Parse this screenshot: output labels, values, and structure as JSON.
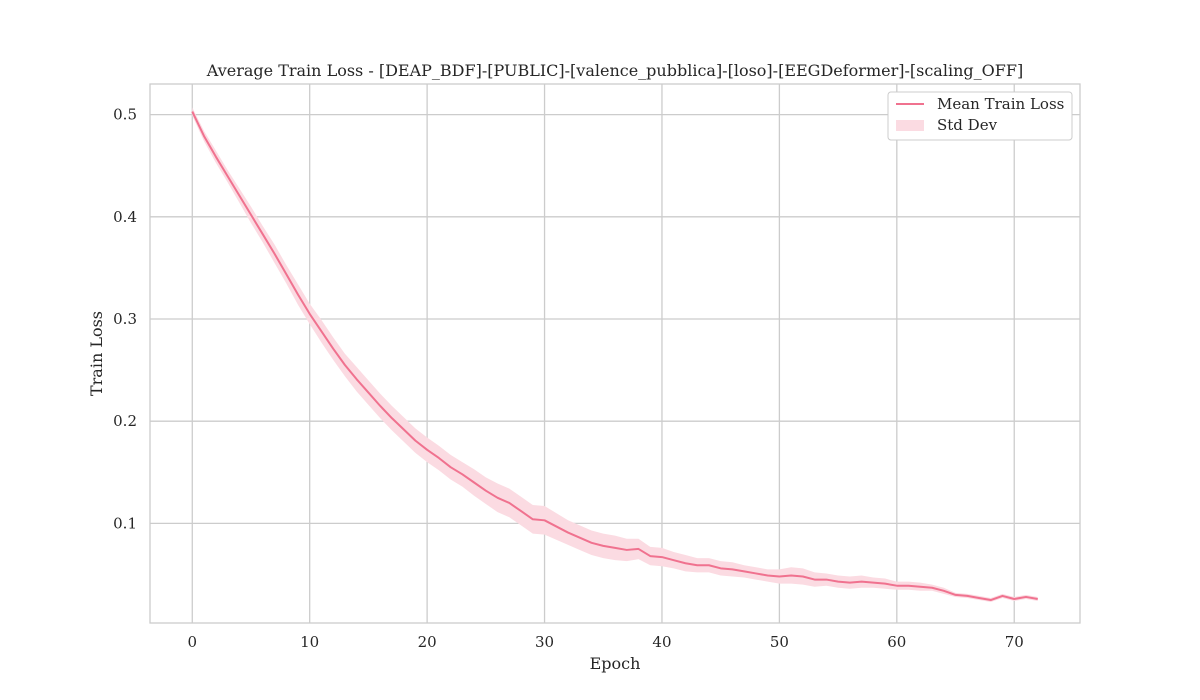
{
  "chart_data": {
    "type": "line",
    "title": "Average Train Loss - [DEAP_BDF]-[PUBLIC]-[valence_pubblica]-[loso]-[EEGDeformer]-[scaling_OFF]",
    "xlabel": "Epoch",
    "ylabel": "Train Loss",
    "xlim": [
      -3.6,
      75.6
    ],
    "ylim": [
      0.0025,
      0.53
    ],
    "xticks": [
      0,
      10,
      20,
      30,
      40,
      50,
      60,
      70
    ],
    "yticks": [
      0.1,
      0.2,
      0.3,
      0.4,
      0.5
    ],
    "xtick_labels": [
      "0",
      "10",
      "20",
      "30",
      "40",
      "50",
      "60",
      "70"
    ],
    "ytick_labels": [
      "0.1",
      "0.2",
      "0.3",
      "0.4",
      "0.5"
    ],
    "grid": true,
    "legend_position": "top-right",
    "legend": [
      "Mean Train Loss",
      "Std Dev"
    ],
    "colors": {
      "line": "#f0728f",
      "band": "#fbdbe2",
      "grid": "#cccccc",
      "frame": "#cccccc"
    },
    "series": [
      {
        "name": "Mean Train Loss",
        "x": [
          0,
          1,
          2,
          3,
          4,
          5,
          6,
          7,
          8,
          9,
          10,
          11,
          12,
          13,
          14,
          15,
          16,
          17,
          18,
          19,
          20,
          21,
          22,
          23,
          24,
          25,
          26,
          27,
          28,
          29,
          30,
          31,
          32,
          33,
          34,
          35,
          36,
          37,
          38,
          39,
          40,
          41,
          42,
          43,
          44,
          45,
          46,
          47,
          48,
          49,
          50,
          51,
          52,
          53,
          54,
          55,
          56,
          57,
          58,
          59,
          60,
          61,
          62,
          63,
          64,
          65,
          66,
          67,
          68,
          69,
          70,
          71,
          72
        ],
        "values": [
          0.503,
          0.479,
          0.459,
          0.44,
          0.421,
          0.402,
          0.383,
          0.364,
          0.344,
          0.324,
          0.305,
          0.288,
          0.271,
          0.255,
          0.241,
          0.228,
          0.215,
          0.203,
          0.192,
          0.181,
          0.172,
          0.164,
          0.155,
          0.148,
          0.14,
          0.132,
          0.125,
          0.12,
          0.112,
          0.104,
          0.103,
          0.097,
          0.091,
          0.086,
          0.081,
          0.078,
          0.076,
          0.074,
          0.075,
          0.068,
          0.067,
          0.064,
          0.061,
          0.059,
          0.059,
          0.056,
          0.055,
          0.053,
          0.051,
          0.049,
          0.048,
          0.049,
          0.048,
          0.045,
          0.045,
          0.043,
          0.042,
          0.043,
          0.042,
          0.041,
          0.039,
          0.039,
          0.038,
          0.037,
          0.034,
          0.03,
          0.029,
          0.027,
          0.025,
          0.029,
          0.026,
          0.028,
          0.026
        ],
        "std": [
          0.004,
          0.005,
          0.006,
          0.006,
          0.007,
          0.008,
          0.008,
          0.009,
          0.009,
          0.01,
          0.01,
          0.011,
          0.011,
          0.011,
          0.012,
          0.012,
          0.012,
          0.012,
          0.012,
          0.012,
          0.012,
          0.012,
          0.012,
          0.012,
          0.013,
          0.013,
          0.014,
          0.014,
          0.014,
          0.014,
          0.014,
          0.013,
          0.012,
          0.012,
          0.012,
          0.012,
          0.012,
          0.011,
          0.01,
          0.009,
          0.009,
          0.008,
          0.008,
          0.007,
          0.007,
          0.007,
          0.007,
          0.006,
          0.006,
          0.006,
          0.007,
          0.008,
          0.008,
          0.007,
          0.006,
          0.006,
          0.006,
          0.006,
          0.005,
          0.005,
          0.004,
          0.004,
          0.004,
          0.003,
          0.003,
          0.002,
          0.002,
          0.002,
          0.002,
          0.002,
          0.002,
          0.002,
          0.002
        ]
      }
    ]
  }
}
